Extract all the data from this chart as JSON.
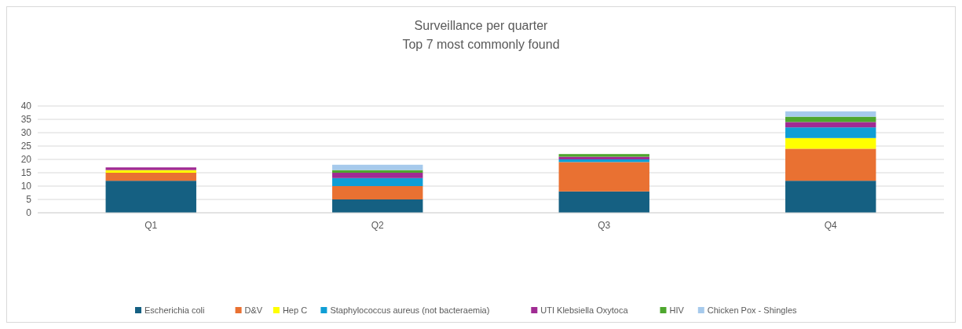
{
  "chart_data": {
    "type": "bar",
    "title": "Surveillance per quarter",
    "subtitle": "Top 7 most commonly found",
    "categories": [
      "Q1",
      "Q2",
      "Q3",
      "Q4"
    ],
    "stacked": true,
    "ylim": [
      0,
      40
    ],
    "yticks": [
      0,
      5,
      10,
      15,
      20,
      25,
      30,
      35,
      40
    ],
    "grid": "y",
    "legend": "bottom",
    "series": [
      {
        "name": "Escherichia coli",
        "color": "#156082",
        "values": [
          12,
          5,
          8,
          12
        ]
      },
      {
        "name": "D&V",
        "color": "#e97132",
        "values": [
          3,
          5,
          11,
          12
        ]
      },
      {
        "name": "Hep C",
        "color": "#ffff00",
        "values": [
          1,
          0,
          0,
          4
        ]
      },
      {
        "name": "Staphylococcus aureus (not bacteraemia)",
        "color": "#0f9ed5",
        "values": [
          0,
          3,
          1,
          4
        ]
      },
      {
        "name": "UTI Klebsiella Oxytoca",
        "color": "#a02b93",
        "values": [
          1,
          2,
          1,
          2
        ]
      },
      {
        "name": "HIV",
        "color": "#4ea72e",
        "values": [
          0,
          1,
          1,
          2
        ]
      },
      {
        "name": "Chicken Pox - Shingles",
        "color": "#a6caec",
        "values": [
          0,
          2,
          0,
          2
        ]
      }
    ]
  }
}
